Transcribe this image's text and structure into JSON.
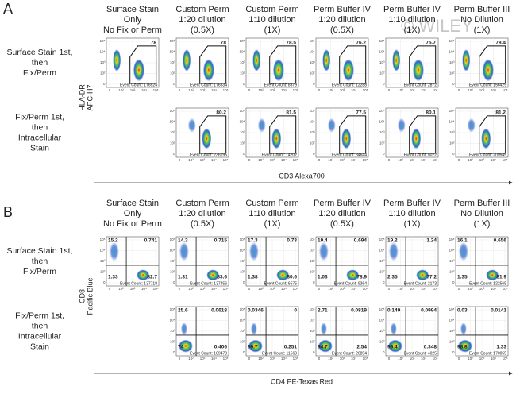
{
  "watermark": "© WILEY",
  "plot_axis_ticks": [
    "0",
    "10²",
    "10³",
    "10⁴",
    "10⁵"
  ],
  "panels": [
    {
      "label": "A",
      "columns": [
        [
          "Surface Stain",
          "Only",
          "No Fix or Perm"
        ],
        [
          "Custom Perm",
          "1:20 dilution",
          "(0.5X)"
        ],
        [
          "Custom Perm",
          "1:10 dilution",
          "(1X)"
        ],
        [
          "Perm Buffer IV",
          "1:20 dilution",
          "(0.5X)"
        ],
        [
          "Perm Buffer IV",
          "1:10 dilution",
          "(1X)"
        ],
        [
          "Perm Buffer III",
          "No Dilution",
          "(1X)"
        ]
      ],
      "y_axis": [
        "HLA-DR",
        "APC-H7"
      ],
      "x_axis": "CD3 Alexa700",
      "rows": [
        {
          "label": [
            "Surface Stain 1st,",
            "then",
            "Fix/Perm"
          ],
          "plots": [
            {
              "value": 78,
              "event_count": "Event Count: 176524"
            },
            {
              "value": 78,
              "event_count": "Event Count: 176334"
            },
            {
              "value": 78.5,
              "event_count": "Event Count: 8379"
            },
            {
              "value": 76.2,
              "event_count": "Event Count: 12288"
            },
            {
              "value": 75.7,
              "event_count": "Event Count: 2872"
            },
            {
              "value": 78.4,
              "event_count": "Event Count: 156429"
            }
          ]
        },
        {
          "label": [
            "Fix/Perm 1st,",
            "then",
            "Intracellular",
            "Stain"
          ],
          "plots": [
            null,
            {
              "value": 80.2,
              "event_count": "Event Count: 236195"
            },
            {
              "value": 81.5,
              "event_count": "Event Count: 14202"
            },
            {
              "value": 77.5,
              "event_count": "Event Count: 34644"
            },
            {
              "value": 80.1,
              "event_count": "Event Count: 5022"
            },
            {
              "value": 81.2,
              "event_count": "Event Count: 209549"
            }
          ]
        }
      ]
    },
    {
      "label": "B",
      "columns": [
        [
          "Surface Stain",
          "Only",
          "No Fix or Perm"
        ],
        [
          "Custom Perm",
          "1:20 dilution",
          "(0.5X)"
        ],
        [
          "Custom Perm",
          "1:10 dilution",
          "(1X)"
        ],
        [
          "Perm Buffer IV",
          "1:20 dilution",
          "(0.5X)"
        ],
        [
          "Perm Buffer IV",
          "1:10 dilution",
          "(1X)"
        ],
        [
          "Perm Buffer III",
          "No Dilution",
          "(1X)"
        ]
      ],
      "y_axis": [
        "CD8",
        "Pacific Blue"
      ],
      "x_axis": "CD4 PE-Texas Red",
      "rows": [
        {
          "label": [
            "Surface Stain 1st,",
            "then",
            "Fix/Perm"
          ],
          "plots": [
            {
              "quadrants": {
                "upper_left": 15.2,
                "upper_right": 0.741,
                "lower_left": 1.33,
                "lower_right": 82.7
              },
              "event_count": "Event Count: 137718"
            },
            {
              "quadrants": {
                "upper_left": 14.3,
                "upper_right": 0.715,
                "lower_left": 1.31,
                "lower_right": 83.6
              },
              "event_count": "Event Count: 137456"
            },
            {
              "quadrants": {
                "upper_left": 17.3,
                "upper_right": 0.73,
                "lower_left": 1.38,
                "lower_right": 80.6
              },
              "event_count": "Event Count: 6575"
            },
            {
              "quadrants": {
                "upper_left": 19.4,
                "upper_right": 0.694,
                "lower_left": 1.03,
                "lower_right": 78.9
              },
              "event_count": "Event Count: 9364"
            },
            {
              "quadrants": {
                "upper_left": 19.2,
                "upper_right": 1.24,
                "lower_left": 2.35,
                "lower_right": 77.2
              },
              "event_count": "Event Count: 2173"
            },
            {
              "quadrants": {
                "upper_left": 16.1,
                "upper_right": 0.656,
                "lower_left": 1.35,
                "lower_right": 81.9
              },
              "event_count": "Event Count: 122565"
            }
          ]
        },
        {
          "label": [
            "Fix/Perm 1st,",
            "then",
            "Intracellular",
            "Stain"
          ],
          "plots": [
            null,
            {
              "quadrants": {
                "upper_left": 25.6,
                "upper_right": 0.0618,
                "lower_left": 74,
                "lower_right": 0.406
              },
              "event_count": "Event Count: 189473"
            },
            {
              "quadrants": {
                "upper_left": 0.0346,
                "upper_right": 0,
                "lower_left": 99.7,
                "lower_right": 0.251
              },
              "event_count": "Event Count: 11569"
            },
            {
              "quadrants": {
                "upper_left": 2.71,
                "upper_right": 0.0819,
                "lower_left": 94.7,
                "lower_right": 2.54
              },
              "event_count": "Event Count: 26854"
            },
            {
              "quadrants": {
                "upper_left": 0.149,
                "upper_right": 0.0994,
                "lower_left": 99.4,
                "lower_right": 0.348
              },
              "event_count": "Event Count: 4025"
            },
            {
              "quadrants": {
                "upper_left": 0.03,
                "upper_right": 0.0141,
                "lower_left": 98.8,
                "lower_right": 1.33
              },
              "event_count": "Event Count: 170055"
            }
          ]
        }
      ]
    }
  ]
}
